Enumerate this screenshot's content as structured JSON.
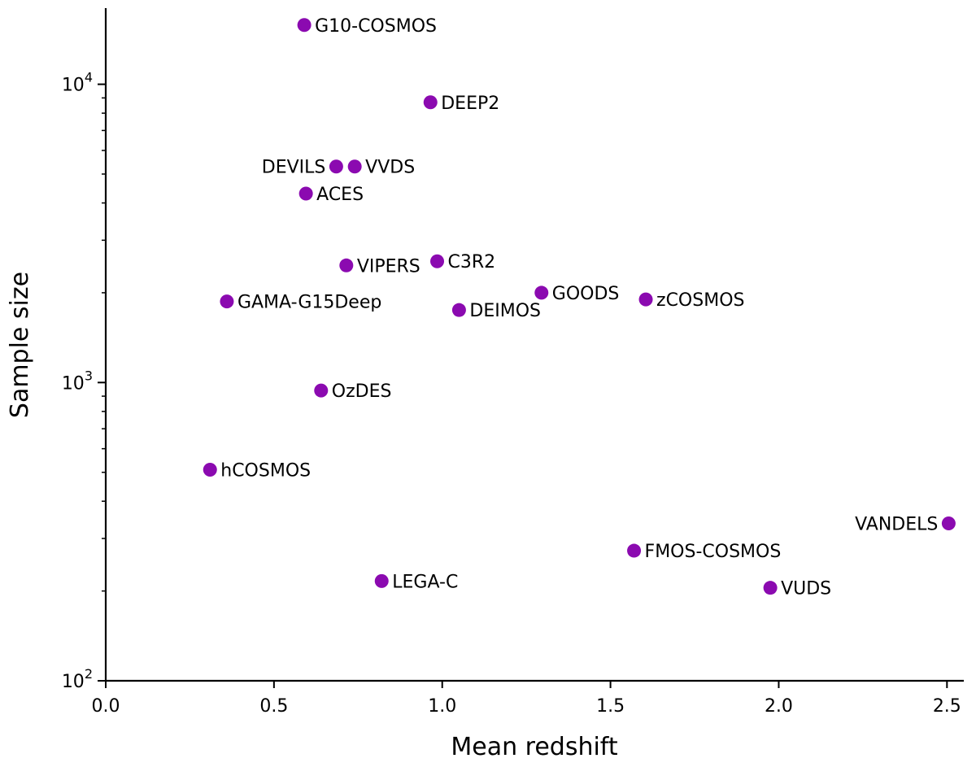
{
  "chart_data": {
    "type": "scatter",
    "title": "",
    "xlabel": "Mean redshift",
    "ylabel": "Sample size",
    "xlim": [
      0.0,
      2.55
    ],
    "ylim": [
      100,
      18000
    ],
    "yscale": "log",
    "grid": false,
    "marker_color": "#8b0ab0",
    "x_ticks": [
      {
        "value": 0.0,
        "label": "0.0"
      },
      {
        "value": 0.5,
        "label": "0.5"
      },
      {
        "value": 1.0,
        "label": "1.0"
      },
      {
        "value": 1.5,
        "label": "1.5"
      },
      {
        "value": 2.0,
        "label": "2.0"
      },
      {
        "value": 2.5,
        "label": "2.5"
      }
    ],
    "y_ticks": [
      {
        "value": 100,
        "base": "10",
        "exp": "2"
      },
      {
        "value": 1000,
        "base": "10",
        "exp": "3"
      },
      {
        "value": 10000,
        "base": "10",
        "exp": "4"
      }
    ],
    "points": [
      {
        "name": "G10-COSMOS",
        "x": 0.59,
        "y": 15800,
        "anchor": "right"
      },
      {
        "name": "DEEP2",
        "x": 0.965,
        "y": 8700,
        "anchor": "right"
      },
      {
        "name": "DEVILS",
        "x": 0.685,
        "y": 5300,
        "anchor": "left"
      },
      {
        "name": "VVDS",
        "x": 0.74,
        "y": 5300,
        "anchor": "right"
      },
      {
        "name": "ACES",
        "x": 0.595,
        "y": 4300,
        "anchor": "right"
      },
      {
        "name": "VIPERS",
        "x": 0.715,
        "y": 2470,
        "anchor": "right"
      },
      {
        "name": "C3R2",
        "x": 0.985,
        "y": 2550,
        "anchor": "right"
      },
      {
        "name": "GAMA-G15Deep",
        "x": 0.36,
        "y": 1870,
        "anchor": "right"
      },
      {
        "name": "GOODS",
        "x": 1.295,
        "y": 2000,
        "anchor": "right"
      },
      {
        "name": "zCOSMOS",
        "x": 1.605,
        "y": 1900,
        "anchor": "right"
      },
      {
        "name": "DEIMOS",
        "x": 1.05,
        "y": 1750,
        "anchor": "right"
      },
      {
        "name": "OzDES",
        "x": 0.64,
        "y": 940,
        "anchor": "right"
      },
      {
        "name": "hCOSMOS",
        "x": 0.31,
        "y": 510,
        "anchor": "right"
      },
      {
        "name": "VANDELS",
        "x": 2.505,
        "y": 337,
        "anchor": "left"
      },
      {
        "name": "FMOS-COSMOS",
        "x": 1.57,
        "y": 273,
        "anchor": "right"
      },
      {
        "name": "LEGA-C",
        "x": 0.82,
        "y": 216,
        "anchor": "right"
      },
      {
        "name": "VUDS",
        "x": 1.975,
        "y": 205,
        "anchor": "right"
      }
    ]
  }
}
